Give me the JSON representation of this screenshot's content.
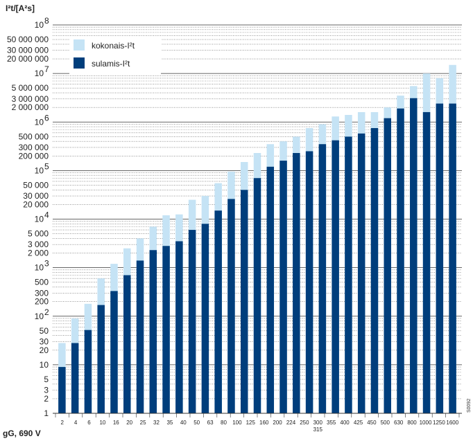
{
  "chart_data": {
    "type": "bar",
    "title": "",
    "ylabel": "I²t/[A²s]",
    "xlabel": "gG, 690 V",
    "yscale": "log",
    "ylim": [
      1,
      100000000
    ],
    "grid": true,
    "legend_position": "top-left",
    "categories": [
      "2",
      "4",
      "6",
      "10",
      "16",
      "20",
      "25",
      "32",
      "35",
      "40",
      "50",
      "63",
      "80",
      "100",
      "125",
      "160",
      "200",
      "224",
      "250",
      "300",
      "315",
      "355",
      "400",
      "425",
      "450",
      "500",
      "630",
      "800",
      "1000",
      "1250",
      "1600"
    ],
    "category_labels": [
      "2",
      "4",
      "6",
      "10",
      "16",
      "20",
      "25",
      "32",
      "35",
      "40",
      "50",
      "63",
      "80",
      "100",
      "125",
      "160",
      "200",
      "224",
      "250",
      "300",
      "355",
      "400",
      "425",
      "450",
      "500",
      "630",
      "800",
      "1000",
      "1250",
      "1600"
    ],
    "category_sublabel": "315",
    "y_tick_labels": [
      {
        "value": 1,
        "label": "1",
        "major": true
      },
      {
        "value": 2,
        "label": "2"
      },
      {
        "value": 3,
        "label": "3"
      },
      {
        "value": 5,
        "label": "5"
      },
      {
        "value": 10,
        "label": "10",
        "major": true
      },
      {
        "value": 20,
        "label": "20"
      },
      {
        "value": 30,
        "label": "30"
      },
      {
        "value": 50,
        "label": "50"
      },
      {
        "value": 100,
        "label": "10",
        "sup": "2",
        "major": true
      },
      {
        "value": 200,
        "label": "200"
      },
      {
        "value": 300,
        "label": "300"
      },
      {
        "value": 500,
        "label": "500"
      },
      {
        "value": 1000,
        "label": "10",
        "sup": "3",
        "major": true
      },
      {
        "value": 2000,
        "label": "2 000"
      },
      {
        "value": 3000,
        "label": "3 000"
      },
      {
        "value": 5000,
        "label": "5 000"
      },
      {
        "value": 10000,
        "label": "10",
        "sup": "4",
        "major": true
      },
      {
        "value": 20000,
        "label": "20 000"
      },
      {
        "value": 30000,
        "label": "30 000"
      },
      {
        "value": 50000,
        "label": "50 000"
      },
      {
        "value": 100000,
        "label": "10",
        "sup": "5",
        "major": true
      },
      {
        "value": 200000,
        "label": "200 000"
      },
      {
        "value": 300000,
        "label": "300 000"
      },
      {
        "value": 500000,
        "label": "500 000"
      },
      {
        "value": 1000000,
        "label": "10",
        "sup": "6",
        "major": true
      },
      {
        "value": 2000000,
        "label": "2 000 000"
      },
      {
        "value": 3000000,
        "label": "3 000 000"
      },
      {
        "value": 5000000,
        "label": "5 000 000"
      },
      {
        "value": 10000000,
        "label": "10",
        "sup": "7",
        "major": true
      },
      {
        "value": 20000000,
        "label": "20 000 000"
      },
      {
        "value": 30000000,
        "label": "30 000 000"
      },
      {
        "value": 50000000,
        "label": "50 000 000"
      },
      {
        "value": 100000000,
        "label": "10",
        "sup": "8",
        "major": true
      }
    ],
    "series": [
      {
        "name": "kokonais-I²t",
        "color": "#c5e3f5",
        "values": [
          28,
          90,
          180,
          600,
          1200,
          2500,
          4000,
          7000,
          12000,
          12500,
          25000,
          30000,
          55000,
          95000,
          150000,
          230000,
          350000,
          400000,
          500000,
          750000,
          900000,
          1300000,
          1400000,
          1600000,
          1600000,
          2000000,
          3500000,
          5500000,
          10000000,
          8000000,
          15000000
        ]
      },
      {
        "name": "sulamis-I²t",
        "color": "#003e7c",
        "values": [
          9,
          28,
          52,
          170,
          330,
          700,
          1400,
          2300,
          2800,
          3500,
          6000,
          8000,
          15000,
          26000,
          40000,
          70000,
          120000,
          160000,
          230000,
          250000,
          350000,
          420000,
          500000,
          580000,
          750000,
          1200000,
          1900000,
          3100000,
          1600000,
          2400000,
          2400000
        ]
      }
    ],
    "side_code": "S0092"
  }
}
